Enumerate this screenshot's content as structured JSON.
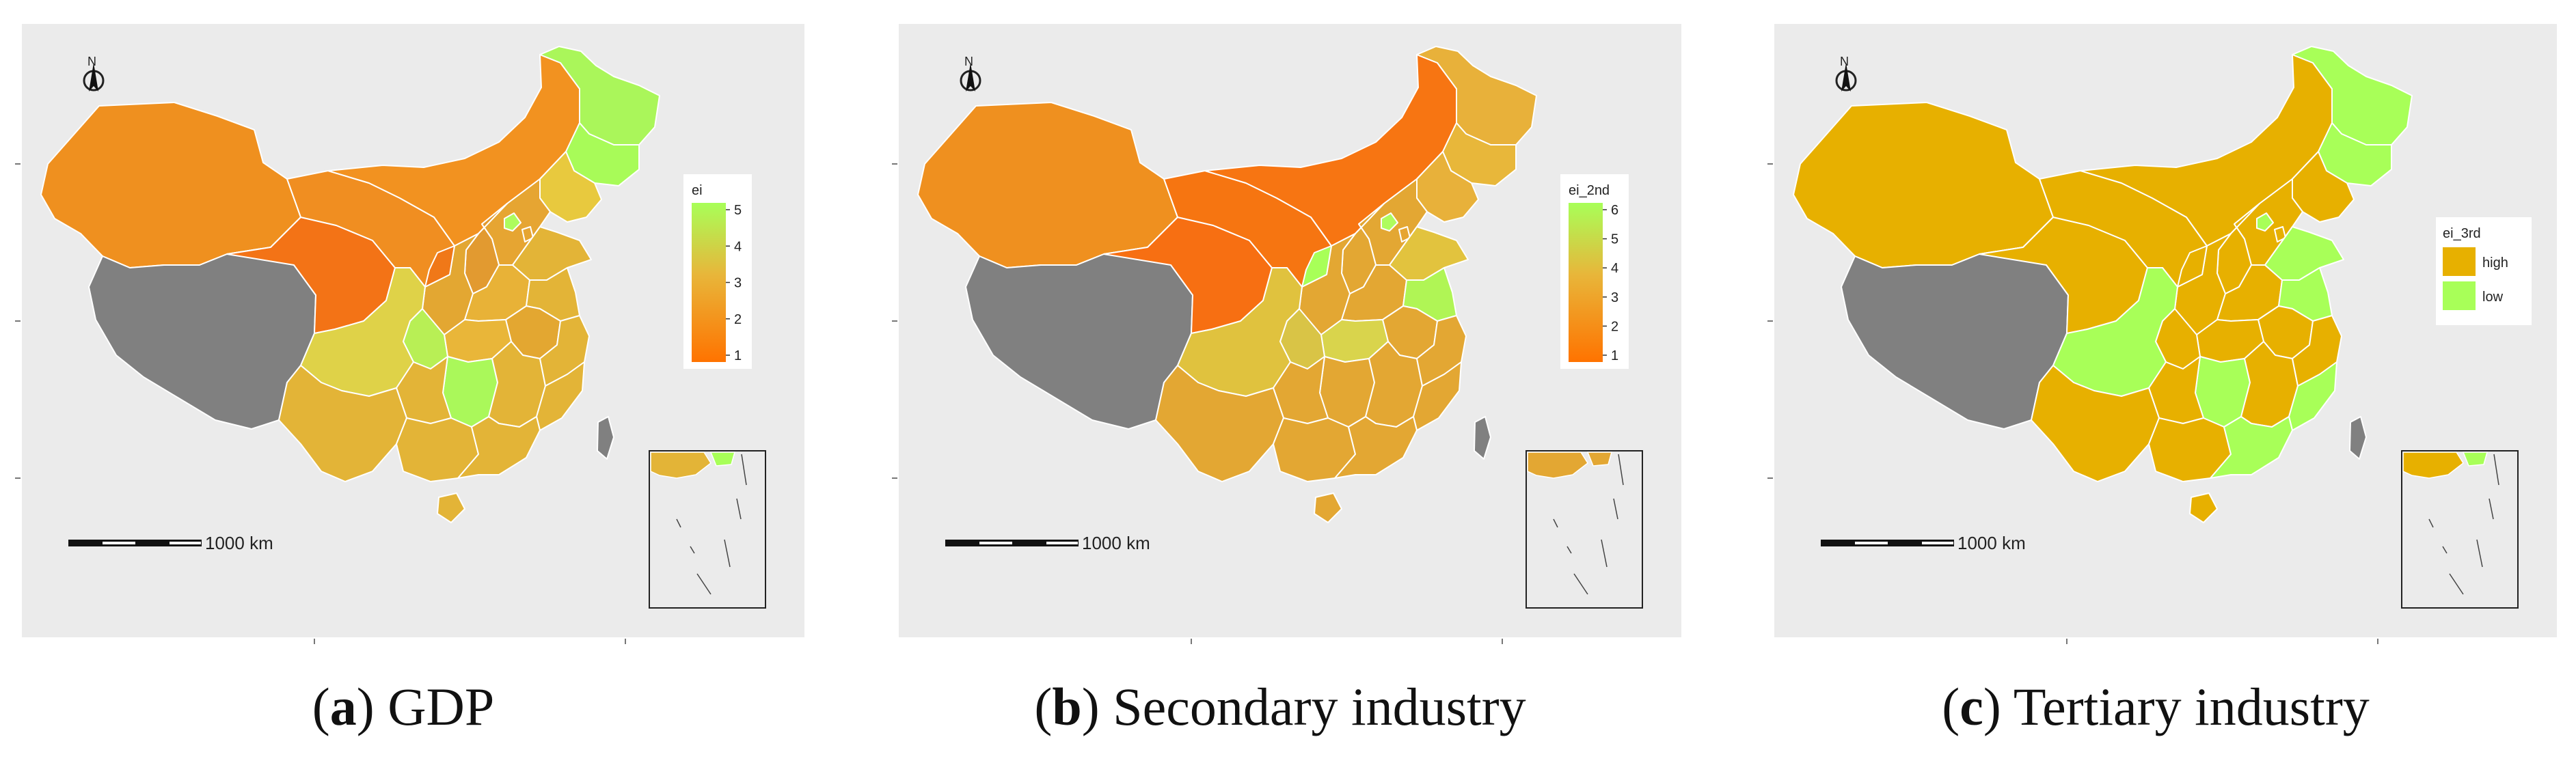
{
  "colors": {
    "background": "#ebebeb",
    "no_data": "#808080",
    "gradient_low": "#ff7300",
    "gradient_mid": "#e8b63a",
    "gradient_high": "#a8ff58",
    "high": "#e7b000",
    "low": "#a8ff58",
    "border": "#ffffff"
  },
  "north_arrow": {
    "label": "N",
    "icon": "north-arrow-icon"
  },
  "scale_bar": {
    "label": "1000 km"
  },
  "panels": [
    {
      "id": "a",
      "caption_letter": "a",
      "caption_text": "GDP",
      "legend": {
        "type": "continuous",
        "title": "ei",
        "ticks": [
          "5",
          "4",
          "3",
          "2",
          "1"
        ]
      },
      "fills": {
        "xinjiang": "#ef901f",
        "tibet": "#808080",
        "qinghai": "#f37316",
        "gansu": "#f08e21",
        "neimenggu": "#f29220",
        "heilongjiang": "#aaf65a",
        "jilin": "#a8fb58",
        "liaoning": "#e8c93e",
        "hebei": "#e6a532",
        "beijing": "#aefc5d",
        "tianjin": "#e6a532",
        "shanxi": "#e29a30",
        "shaanxi": "#e3a732",
        "ningxia": "#f07818",
        "henan": "#e8b237",
        "shandong": "#e3b437",
        "jiangsu": "#e3b437",
        "anhui": "#e3a731",
        "hubei": "#e9b639",
        "chongqing": "#b8ef55",
        "sichuan": "#dfd248",
        "hunan": "#aaf85a",
        "jiangxi": "#e3b437",
        "zhejiang": "#e3b437",
        "fujian": "#e3b437",
        "guizhou": "#e3b437",
        "yunnan": "#e3b437",
        "guangxi": "#e3b437",
        "guangdong": "#e3b437",
        "hainan": "#e3b437",
        "taiwan": "#808080",
        "inset": "#e3b437",
        "inset_accent": "#a8ff58"
      }
    },
    {
      "id": "b",
      "caption_letter": "b",
      "caption_text": "Secondary industry",
      "legend": {
        "type": "continuous",
        "title": "ei_2nd",
        "ticks": [
          "6",
          "5",
          "4",
          "3",
          "2",
          "1"
        ]
      },
      "fills": {
        "xinjiang": "#ef901f",
        "tibet": "#808080",
        "qinghai": "#f76f12",
        "gansu": "#f67511",
        "neimenggu": "#f77512",
        "heilongjiang": "#e8b13a",
        "jilin": "#e8b73a",
        "liaoning": "#e8b13a",
        "hebei": "#e3a733",
        "beijing": "#aefc5d",
        "tianjin": "#e6a532",
        "shanxi": "#e3a733",
        "shaanxi": "#e3a733",
        "ningxia": "#a8ff58",
        "henan": "#e3a733",
        "shandong": "#e2c33e",
        "jiangsu": "#b0f555",
        "anhui": "#e3a733",
        "hubei": "#d9d44c",
        "chongqing": "#d9c446",
        "sichuan": "#e0c23e",
        "hunan": "#e3a733",
        "jiangxi": "#e3a733",
        "zhejiang": "#e3a733",
        "fujian": "#e3a733",
        "guizhou": "#e3a733",
        "yunnan": "#e3a733",
        "guangxi": "#e3a733",
        "guangdong": "#e3a733",
        "hainan": "#e3a733",
        "taiwan": "#808080",
        "inset": "#e3a733",
        "inset_accent": "#e3a733"
      }
    },
    {
      "id": "c",
      "caption_letter": "c",
      "caption_text": "Tertiary industry",
      "legend": {
        "type": "categorical",
        "title": "ei_3rd",
        "items": [
          {
            "label": "high",
            "color": "#e7b000"
          },
          {
            "label": "low",
            "color": "#a8ff58"
          }
        ]
      },
      "fills": {
        "xinjiang": "#e7b000",
        "tibet": "#808080",
        "qinghai": "#e7b000",
        "gansu": "#e7b000",
        "neimenggu": "#e7b000",
        "heilongjiang": "#a8ff58",
        "jilin": "#a8ff58",
        "liaoning": "#e7b000",
        "hebei": "#e7b000",
        "beijing": "#a8ff58",
        "tianjin": "#e7b000",
        "shanxi": "#e7b000",
        "shaanxi": "#e7b000",
        "ningxia": "#e7b000",
        "henan": "#e7b000",
        "shandong": "#a8ff58",
        "jiangsu": "#a8ff58",
        "anhui": "#e7b000",
        "hubei": "#e7b000",
        "chongqing": "#e7b000",
        "sichuan": "#a8ff58",
        "hunan": "#a8ff58",
        "jiangxi": "#e7b000",
        "zhejiang": "#e7b000",
        "fujian": "#a8ff58",
        "guizhou": "#e7b000",
        "yunnan": "#e7b000",
        "guangxi": "#e7b000",
        "guangdong": "#a8ff58",
        "hainan": "#e7b000",
        "taiwan": "#808080",
        "inset": "#e7b000",
        "inset_accent": "#a8ff58"
      }
    }
  ]
}
